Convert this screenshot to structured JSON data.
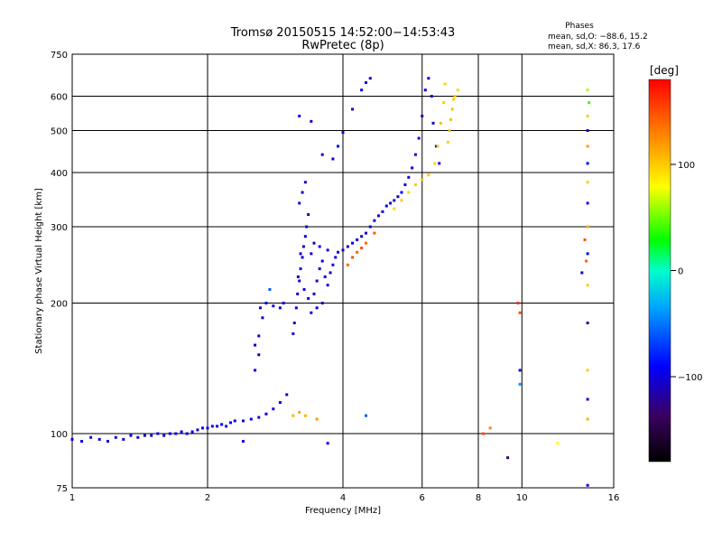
{
  "chart_data": {
    "type": "scatter",
    "title": "Tromsø 20150515 14:52:00−14:53:43",
    "subtitle": "RwPretec (8p)",
    "xlabel": "Frequency [MHz]",
    "ylabel": "Stationary phase Virtual Height [km]",
    "x_scale": "log",
    "y_scale": "log",
    "xlim": [
      1,
      16
    ],
    "ylim": [
      75,
      750
    ],
    "x_ticks": [
      1,
      2,
      4,
      6,
      8,
      10,
      16
    ],
    "x_tick_labels": [
      "1",
      "2",
      "4",
      "6",
      "8",
      "10",
      "16"
    ],
    "y_ticks": [
      75,
      100,
      200,
      300,
      400,
      500,
      600,
      750
    ],
    "y_tick_labels": [
      "75",
      "100",
      "200",
      "300",
      "400",
      "500",
      "600",
      "750"
    ],
    "grid": true,
    "phases_box": {
      "heading": "Phases",
      "line_o": "mean, sd,O: −88.6, 15.2",
      "line_x": "mean, sd,X:  86.3, 17.6"
    },
    "colorbar": {
      "label": "[deg]",
      "range": [
        -180,
        180
      ],
      "ticks": [
        -100,
        0,
        100
      ],
      "tick_labels": [
        "−100",
        "0",
        "100"
      ],
      "colormap": "rainbow"
    },
    "series": [
      {
        "points": [
          [
            1.0,
            97,
            -100
          ],
          [
            1.05,
            96,
            -95
          ],
          [
            1.1,
            98,
            -105
          ],
          [
            1.15,
            97,
            -100
          ],
          [
            1.2,
            96,
            -98
          ],
          [
            1.25,
            98,
            -102
          ],
          [
            1.3,
            97,
            -100
          ],
          [
            1.35,
            99,
            -95
          ],
          [
            1.4,
            98,
            -100
          ],
          [
            1.45,
            99,
            -105
          ],
          [
            1.5,
            99,
            -100
          ],
          [
            1.55,
            100,
            -98
          ],
          [
            1.6,
            99,
            -100
          ],
          [
            1.65,
            100,
            -95
          ],
          [
            1.7,
            100,
            -100
          ],
          [
            1.75,
            101,
            -102
          ],
          [
            1.8,
            100,
            -100
          ],
          [
            1.85,
            101,
            -98
          ],
          [
            1.9,
            102,
            -100
          ],
          [
            1.95,
            103,
            -95
          ],
          [
            2.0,
            103,
            -100
          ],
          [
            2.05,
            104,
            -105
          ],
          [
            2.1,
            104,
            -100
          ],
          [
            2.15,
            105,
            -98
          ],
          [
            2.2,
            104,
            -100
          ],
          [
            2.25,
            106,
            -95
          ],
          [
            2.3,
            107,
            -100
          ],
          [
            2.4,
            107,
            -102
          ],
          [
            2.5,
            108,
            -100
          ],
          [
            2.6,
            109,
            -98
          ],
          [
            2.7,
            111,
            -100
          ],
          [
            2.8,
            114,
            -100
          ],
          [
            2.9,
            118,
            -95
          ],
          [
            3.0,
            123,
            -100
          ],
          [
            2.55,
            140,
            -95
          ],
          [
            2.6,
            152,
            -100
          ],
          [
            2.55,
            160,
            -100
          ],
          [
            2.6,
            168,
            -98
          ],
          [
            2.65,
            185,
            -100
          ],
          [
            2.62,
            195,
            -100
          ],
          [
            2.7,
            200,
            -95
          ],
          [
            2.8,
            197,
            -100
          ],
          [
            2.9,
            195,
            -100
          ],
          [
            2.95,
            200,
            -98
          ],
          [
            2.75,
            215,
            -60
          ]
        ]
      },
      {
        "points": [
          [
            3.1,
            170,
            -100
          ],
          [
            3.12,
            180,
            -110
          ],
          [
            3.15,
            195,
            -100
          ],
          [
            3.17,
            210,
            -105
          ],
          [
            3.2,
            225,
            -100
          ],
          [
            3.22,
            240,
            -95
          ],
          [
            3.25,
            255,
            -100
          ],
          [
            3.27,
            270,
            -110
          ],
          [
            3.3,
            285,
            -100
          ],
          [
            3.32,
            300,
            -105
          ],
          [
            3.35,
            320,
            -100
          ],
          [
            3.2,
            340,
            -95
          ],
          [
            3.25,
            360,
            -100
          ],
          [
            3.3,
            380,
            -105
          ],
          [
            3.22,
            260,
            -100
          ],
          [
            3.18,
            230,
            -110
          ],
          [
            3.28,
            215,
            -100
          ],
          [
            3.35,
            205,
            -95
          ],
          [
            3.4,
            190,
            -100
          ],
          [
            3.45,
            210,
            -105
          ],
          [
            3.5,
            225,
            -100
          ],
          [
            3.55,
            240,
            -95
          ],
          [
            3.6,
            250,
            -100
          ],
          [
            3.65,
            230,
            -110
          ],
          [
            3.7,
            220,
            -100
          ],
          [
            3.75,
            235,
            -105
          ],
          [
            3.8,
            245,
            -100
          ],
          [
            3.85,
            255,
            -95
          ],
          [
            3.6,
            200,
            -100
          ],
          [
            3.5,
            195,
            -105
          ],
          [
            3.4,
            260,
            -100
          ],
          [
            3.45,
            275,
            -110
          ],
          [
            3.55,
            270,
            -100
          ],
          [
            3.7,
            265,
            -95
          ],
          [
            3.9,
            262,
            -100
          ],
          [
            4.0,
            265,
            -105
          ],
          [
            4.1,
            270,
            -100
          ],
          [
            4.2,
            275,
            -95
          ],
          [
            4.3,
            280,
            -100
          ],
          [
            4.4,
            285,
            -105
          ],
          [
            4.5,
            290,
            -100
          ],
          [
            4.6,
            300,
            -95
          ],
          [
            4.7,
            310,
            -100
          ],
          [
            4.8,
            318,
            -105
          ],
          [
            4.9,
            325,
            -100
          ],
          [
            5.0,
            335,
            -95
          ],
          [
            5.1,
            340,
            -100
          ],
          [
            5.2,
            345,
            -105
          ],
          [
            5.3,
            352,
            -100
          ],
          [
            5.4,
            360,
            -95
          ],
          [
            5.5,
            375,
            -100
          ],
          [
            5.6,
            390,
            -105
          ],
          [
            5.7,
            410,
            -100
          ],
          [
            5.8,
            440,
            -95
          ],
          [
            5.9,
            480,
            -100
          ],
          [
            6.0,
            540,
            -105
          ],
          [
            6.1,
            620,
            -100
          ],
          [
            6.2,
            660,
            -95
          ],
          [
            6.3,
            600,
            -100
          ],
          [
            6.35,
            520,
            -110
          ],
          [
            6.45,
            460,
            -100
          ],
          [
            6.55,
            420,
            -105
          ],
          [
            3.8,
            430,
            -100
          ],
          [
            3.9,
            460,
            -95
          ],
          [
            4.0,
            495,
            -100
          ],
          [
            3.6,
            440,
            -105
          ],
          [
            4.2,
            560,
            -100
          ],
          [
            4.4,
            620,
            -95
          ],
          [
            4.5,
            645,
            -100
          ],
          [
            4.6,
            660,
            -105
          ],
          [
            3.4,
            525,
            -100
          ],
          [
            3.2,
            540,
            -95
          ]
        ]
      },
      {
        "points": [
          [
            5.2,
            330,
            95
          ],
          [
            5.4,
            345,
            100
          ],
          [
            5.6,
            360,
            95
          ],
          [
            5.8,
            375,
            100
          ],
          [
            6.0,
            385,
            105
          ],
          [
            6.2,
            395,
            100
          ],
          [
            6.4,
            420,
            95
          ],
          [
            6.5,
            460,
            100
          ],
          [
            6.6,
            520,
            105
          ],
          [
            6.7,
            580,
            100
          ],
          [
            6.75,
            640,
            95
          ],
          [
            6.9,
            500,
            100
          ],
          [
            7.0,
            560,
            105
          ],
          [
            7.1,
            600,
            100
          ],
          [
            7.2,
            620,
            95
          ],
          [
            6.85,
            470,
            100
          ],
          [
            6.95,
            530,
            105
          ],
          [
            7.05,
            590,
            100
          ]
        ]
      },
      {
        "points": [
          [
            4.1,
            245,
            140
          ],
          [
            4.2,
            255,
            150
          ],
          [
            4.3,
            262,
            145
          ],
          [
            4.4,
            268,
            150
          ],
          [
            4.5,
            275,
            140
          ],
          [
            4.7,
            290,
            145
          ],
          [
            3.1,
            110,
            110
          ],
          [
            3.2,
            112,
            115
          ],
          [
            3.3,
            110,
            110
          ],
          [
            3.5,
            108,
            120
          ],
          [
            8.2,
            100,
            150
          ],
          [
            8.5,
            103,
            130
          ],
          [
            9.8,
            200,
            160
          ],
          [
            9.9,
            190,
            150
          ],
          [
            13.8,
            280,
            150
          ],
          [
            13.9,
            250,
            140
          ]
        ]
      },
      {
        "points": [
          [
            14.0,
            620,
            60
          ],
          [
            14.1,
            580,
            40
          ],
          [
            14.0,
            540,
            100
          ],
          [
            14.0,
            500,
            -100
          ],
          [
            14.0,
            460,
            120
          ],
          [
            14.0,
            420,
            -90
          ],
          [
            14.0,
            380,
            100
          ],
          [
            14.0,
            340,
            -100
          ],
          [
            14.0,
            300,
            110
          ],
          [
            14.0,
            260,
            -100
          ],
          [
            14.0,
            220,
            100
          ],
          [
            14.0,
            180,
            -110
          ],
          [
            14.0,
            140,
            100
          ],
          [
            14.0,
            120,
            -100
          ],
          [
            14.0,
            108,
            110
          ],
          [
            14.0,
            76,
            -100
          ],
          [
            9.9,
            130,
            -40
          ],
          [
            9.9,
            140,
            -100
          ],
          [
            9.3,
            88,
            -140
          ],
          [
            12.0,
            95,
            80
          ],
          [
            13.6,
            235,
            -100
          ],
          [
            4.5,
            110,
            -60
          ],
          [
            3.7,
            95,
            -100
          ],
          [
            2.4,
            96,
            -100
          ]
        ]
      }
    ]
  }
}
